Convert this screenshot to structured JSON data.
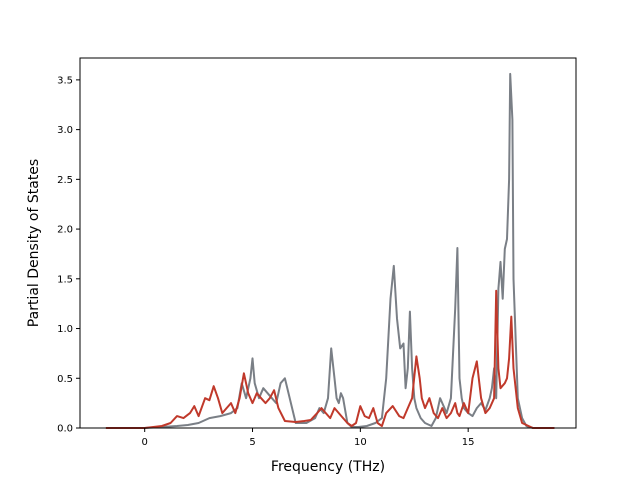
{
  "chart_data": {
    "type": "line",
    "title": "",
    "xlabel": "Frequency (THz)",
    "ylabel": "Partial Density of States",
    "xlim": [
      -3.0,
      20.0
    ],
    "ylim": [
      0.0,
      3.72
    ],
    "xticks": [
      0,
      5,
      10,
      15
    ],
    "yticks": [
      0.0,
      0.5,
      1.0,
      1.5,
      2.0,
      2.5,
      3.0,
      3.5
    ],
    "xtick_labels": [
      "0",
      "5",
      "10",
      "15"
    ],
    "ytick_labels": [
      "0.0",
      "0.5",
      "1.0",
      "1.5",
      "2.0",
      "2.5",
      "3.0",
      "3.5"
    ],
    "grid": false,
    "legend": false,
    "series": [
      {
        "color": "#7a7f86",
        "x": [
          -1.8,
          0.0,
          0.8,
          1.5,
          2.0,
          2.5,
          3.0,
          3.5,
          4.0,
          4.3,
          4.5,
          4.7,
          4.9,
          5.0,
          5.1,
          5.3,
          5.5,
          5.7,
          5.9,
          6.1,
          6.3,
          6.5,
          7.0,
          7.5,
          7.9,
          8.1,
          8.3,
          8.5,
          8.65,
          8.8,
          8.9,
          9.0,
          9.1,
          9.2,
          9.4,
          9.6,
          9.9,
          10.3,
          10.7,
          11.0,
          11.2,
          11.4,
          11.55,
          11.7,
          11.85,
          12.0,
          12.1,
          12.2,
          12.3,
          12.4,
          12.5,
          12.6,
          12.8,
          13.0,
          13.3,
          13.5,
          13.7,
          13.8,
          13.9,
          14.0,
          14.2,
          14.4,
          14.5,
          14.6,
          14.7,
          14.8,
          15.0,
          15.2,
          15.4,
          15.6,
          15.8,
          16.0,
          16.1,
          16.2,
          16.3,
          16.4,
          16.5,
          16.6,
          16.7,
          16.8,
          16.9,
          16.95,
          17.05,
          17.1,
          17.3,
          17.5,
          17.7,
          18.0,
          19.0
        ],
        "y": [
          0.0,
          0.0,
          0.01,
          0.02,
          0.03,
          0.05,
          0.1,
          0.12,
          0.15,
          0.2,
          0.45,
          0.3,
          0.5,
          0.7,
          0.45,
          0.3,
          0.4,
          0.35,
          0.3,
          0.25,
          0.45,
          0.5,
          0.05,
          0.05,
          0.1,
          0.2,
          0.15,
          0.3,
          0.8,
          0.5,
          0.3,
          0.25,
          0.35,
          0.3,
          0.05,
          0.01,
          0.01,
          0.02,
          0.05,
          0.1,
          0.5,
          1.3,
          1.63,
          1.1,
          0.8,
          0.85,
          0.4,
          0.6,
          1.17,
          0.6,
          0.3,
          0.2,
          0.1,
          0.05,
          0.02,
          0.1,
          0.3,
          0.25,
          0.2,
          0.15,
          0.3,
          1.2,
          1.81,
          0.5,
          0.3,
          0.2,
          0.15,
          0.12,
          0.2,
          0.25,
          0.18,
          0.3,
          0.4,
          0.6,
          0.3,
          1.4,
          1.67,
          1.3,
          1.8,
          1.9,
          2.5,
          3.56,
          3.1,
          1.5,
          0.3,
          0.1,
          0.02,
          0.0,
          0.0
        ]
      },
      {
        "color": "#c0392b",
        "x": [
          -1.8,
          0.0,
          0.8,
          1.2,
          1.5,
          1.8,
          2.1,
          2.3,
          2.5,
          2.8,
          3.0,
          3.2,
          3.4,
          3.6,
          3.8,
          4.0,
          4.2,
          4.4,
          4.6,
          4.8,
          5.0,
          5.2,
          5.4,
          5.6,
          5.8,
          6.0,
          6.2,
          6.5,
          7.0,
          7.4,
          7.7,
          8.0,
          8.2,
          8.4,
          8.6,
          8.8,
          9.0,
          9.2,
          9.4,
          9.6,
          9.8,
          10.0,
          10.2,
          10.4,
          10.6,
          10.8,
          11.0,
          11.2,
          11.5,
          11.8,
          12.0,
          12.2,
          12.4,
          12.6,
          12.75,
          12.85,
          13.0,
          13.2,
          13.4,
          13.6,
          13.8,
          14.0,
          14.2,
          14.4,
          14.5,
          14.6,
          14.8,
          15.0,
          15.2,
          15.4,
          15.6,
          15.8,
          16.0,
          16.2,
          16.3,
          16.4,
          16.5,
          16.7,
          16.8,
          16.9,
          17.0,
          17.1,
          17.3,
          17.5,
          18.0,
          19.0
        ],
        "y": [
          0.0,
          0.0,
          0.02,
          0.05,
          0.12,
          0.1,
          0.15,
          0.22,
          0.12,
          0.3,
          0.28,
          0.42,
          0.3,
          0.15,
          0.2,
          0.25,
          0.15,
          0.3,
          0.55,
          0.35,
          0.25,
          0.35,
          0.3,
          0.25,
          0.3,
          0.38,
          0.2,
          0.07,
          0.06,
          0.07,
          0.08,
          0.15,
          0.2,
          0.15,
          0.1,
          0.2,
          0.15,
          0.1,
          0.05,
          0.02,
          0.05,
          0.22,
          0.12,
          0.1,
          0.2,
          0.05,
          0.02,
          0.15,
          0.22,
          0.12,
          0.1,
          0.2,
          0.3,
          0.72,
          0.5,
          0.3,
          0.2,
          0.3,
          0.15,
          0.1,
          0.2,
          0.1,
          0.15,
          0.25,
          0.15,
          0.12,
          0.25,
          0.15,
          0.5,
          0.67,
          0.3,
          0.15,
          0.2,
          0.3,
          1.38,
          0.6,
          0.4,
          0.45,
          0.5,
          0.7,
          1.12,
          0.6,
          0.2,
          0.05,
          0.0,
          0.0
        ]
      }
    ]
  }
}
